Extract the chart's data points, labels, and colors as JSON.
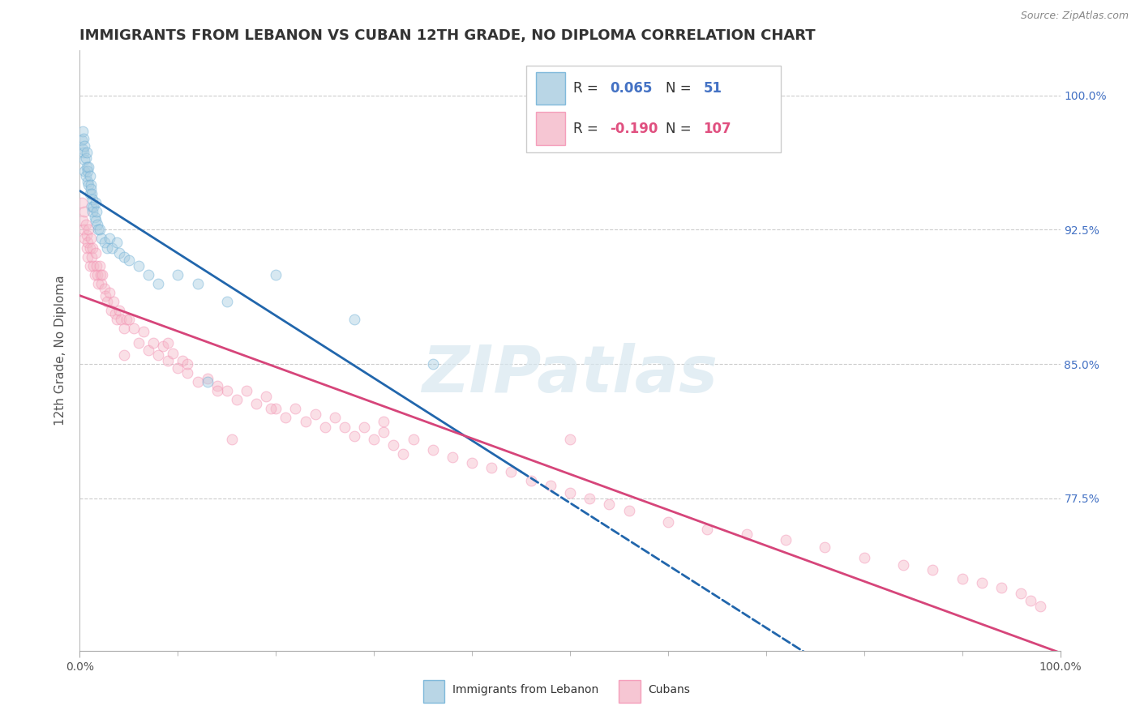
{
  "title": "IMMIGRANTS FROM LEBANON VS CUBAN 12TH GRADE, NO DIPLOMA CORRELATION CHART",
  "source_text": "Source: ZipAtlas.com",
  "ylabel": "12th Grade, No Diploma",
  "legend_label_blue": "Immigrants from Lebanon",
  "legend_label_pink": "Cubans",
  "blue_color": "#a8cce0",
  "pink_color": "#f4b8c8",
  "blue_edge_color": "#6baed6",
  "pink_edge_color": "#f48fb1",
  "blue_line_color": "#2166ac",
  "pink_line_color": "#d6457a",
  "blue_R": "0.065",
  "blue_N": "51",
  "pink_R": "-0.190",
  "pink_N": "107",
  "R_color_blue": "#4472c4",
  "R_color_pink": "#e05080",
  "xlim": [
    0.0,
    1.0
  ],
  "ylim": [
    0.69,
    1.025
  ],
  "ytick_positions": [
    0.775,
    0.85,
    0.925,
    1.0
  ],
  "ytick_labels": [
    "77.5%",
    "85.0%",
    "92.5%",
    "100.0%"
  ],
  "xtick_positions": [
    0.0,
    1.0
  ],
  "xtick_labels": [
    "0.0%",
    "100.0%"
  ],
  "blue_line_solid_end": 0.45,
  "watermark": "ZIPatlas",
  "background_color": "#ffffff",
  "grid_color": "#cccccc",
  "title_color": "#333333",
  "right_tick_color": "#4472c4",
  "title_fontsize": 13,
  "ylabel_fontsize": 11,
  "tick_fontsize": 10,
  "scatter_size": 85,
  "scatter_alpha": 0.45,
  "blue_scatter_x": [
    0.002,
    0.003,
    0.003,
    0.004,
    0.004,
    0.005,
    0.005,
    0.005,
    0.006,
    0.006,
    0.007,
    0.007,
    0.008,
    0.008,
    0.009,
    0.009,
    0.01,
    0.01,
    0.011,
    0.011,
    0.012,
    0.012,
    0.013,
    0.013,
    0.014,
    0.015,
    0.016,
    0.016,
    0.017,
    0.018,
    0.019,
    0.02,
    0.022,
    0.025,
    0.028,
    0.03,
    0.033,
    0.038,
    0.04,
    0.045,
    0.05,
    0.06,
    0.07,
    0.08,
    0.1,
    0.12,
    0.15,
    0.2,
    0.28,
    0.36,
    0.13
  ],
  "blue_scatter_y": [
    0.975,
    0.97,
    0.98,
    0.968,
    0.976,
    0.972,
    0.964,
    0.958,
    0.965,
    0.955,
    0.968,
    0.96,
    0.958,
    0.952,
    0.96,
    0.95,
    0.955,
    0.945,
    0.95,
    0.948,
    0.945,
    0.938,
    0.942,
    0.935,
    0.938,
    0.932,
    0.94,
    0.93,
    0.935,
    0.928,
    0.925,
    0.925,
    0.92,
    0.918,
    0.915,
    0.92,
    0.915,
    0.918,
    0.912,
    0.91,
    0.908,
    0.905,
    0.9,
    0.895,
    0.9,
    0.895,
    0.885,
    0.9,
    0.875,
    0.85,
    0.84
  ],
  "pink_scatter_x": [
    0.002,
    0.003,
    0.004,
    0.005,
    0.005,
    0.006,
    0.007,
    0.007,
    0.008,
    0.008,
    0.009,
    0.01,
    0.01,
    0.011,
    0.012,
    0.013,
    0.014,
    0.015,
    0.016,
    0.017,
    0.018,
    0.019,
    0.02,
    0.021,
    0.022,
    0.023,
    0.025,
    0.026,
    0.028,
    0.03,
    0.032,
    0.034,
    0.036,
    0.038,
    0.04,
    0.042,
    0.045,
    0.048,
    0.05,
    0.055,
    0.06,
    0.065,
    0.07,
    0.075,
    0.08,
    0.085,
    0.09,
    0.095,
    0.1,
    0.105,
    0.11,
    0.12,
    0.13,
    0.14,
    0.15,
    0.16,
    0.17,
    0.18,
    0.19,
    0.2,
    0.21,
    0.22,
    0.23,
    0.24,
    0.25,
    0.26,
    0.27,
    0.28,
    0.29,
    0.3,
    0.31,
    0.32,
    0.33,
    0.34,
    0.36,
    0.38,
    0.4,
    0.42,
    0.44,
    0.46,
    0.48,
    0.5,
    0.52,
    0.54,
    0.56,
    0.6,
    0.64,
    0.68,
    0.72,
    0.76,
    0.8,
    0.84,
    0.87,
    0.9,
    0.92,
    0.94,
    0.96,
    0.97,
    0.98,
    0.14,
    0.11,
    0.09,
    0.155,
    0.195,
    0.045,
    0.31,
    0.5
  ],
  "pink_scatter_y": [
    0.94,
    0.93,
    0.925,
    0.935,
    0.92,
    0.928,
    0.922,
    0.915,
    0.918,
    0.91,
    0.925,
    0.915,
    0.905,
    0.92,
    0.91,
    0.915,
    0.905,
    0.9,
    0.912,
    0.905,
    0.9,
    0.895,
    0.905,
    0.9,
    0.895,
    0.9,
    0.892,
    0.888,
    0.885,
    0.89,
    0.88,
    0.885,
    0.878,
    0.875,
    0.88,
    0.875,
    0.87,
    0.875,
    0.875,
    0.87,
    0.862,
    0.868,
    0.858,
    0.862,
    0.855,
    0.86,
    0.852,
    0.856,
    0.848,
    0.852,
    0.845,
    0.84,
    0.842,
    0.838,
    0.835,
    0.83,
    0.835,
    0.828,
    0.832,
    0.825,
    0.82,
    0.825,
    0.818,
    0.822,
    0.815,
    0.82,
    0.815,
    0.81,
    0.815,
    0.808,
    0.812,
    0.805,
    0.8,
    0.808,
    0.802,
    0.798,
    0.795,
    0.792,
    0.79,
    0.785,
    0.782,
    0.778,
    0.775,
    0.772,
    0.768,
    0.762,
    0.758,
    0.755,
    0.752,
    0.748,
    0.742,
    0.738,
    0.735,
    0.73,
    0.728,
    0.725,
    0.722,
    0.718,
    0.715,
    0.835,
    0.85,
    0.862,
    0.808,
    0.825,
    0.855,
    0.818,
    0.808
  ]
}
